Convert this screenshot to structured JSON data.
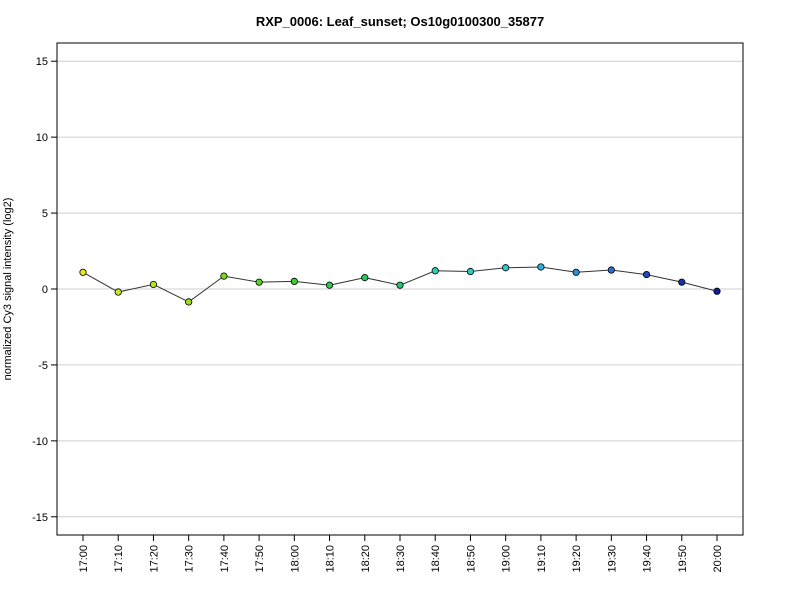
{
  "chart_data": {
    "type": "line",
    "title": "RXP_0006: Leaf_sunset; Os10g0100300_35877",
    "xlabel": "",
    "ylabel": "normalized Cy3 signal intensity (log2)",
    "ylim": [
      -16.2,
      16.2
    ],
    "yticks": [
      15,
      10,
      5,
      0,
      -5,
      -10,
      -15
    ],
    "ytick_labels": [
      "15",
      "10",
      "5",
      "0",
      "-5",
      "-10",
      "-15"
    ],
    "grid": true,
    "categories": [
      "17:00",
      "17:10",
      "17:20",
      "17:30",
      "17:40",
      "17:50",
      "18:00",
      "18:10",
      "18:20",
      "18:30",
      "18:40",
      "18:50",
      "19:00",
      "19:10",
      "19:20",
      "19:30",
      "19:40",
      "19:50",
      "20:00"
    ],
    "values": [
      1.1,
      -0.2,
      0.3,
      -0.85,
      0.85,
      0.45,
      0.5,
      0.25,
      0.75,
      0.25,
      1.2,
      1.15,
      1.4,
      1.45,
      1.1,
      1.25,
      0.95,
      0.45,
      -0.15
    ],
    "point_colors": [
      "#e6e62a",
      "#c8e620",
      "#b4e620",
      "#9adc20",
      "#7ad820",
      "#5ad228",
      "#3ecf38",
      "#2ecb4a",
      "#28c860",
      "#22c57a",
      "#28cfb0",
      "#28cfc0",
      "#30c8d0",
      "#2ab0e0",
      "#2a90d8",
      "#2a6cd0",
      "#1e48c0",
      "#1830b0",
      "#102090"
    ],
    "line_color": "#333333"
  }
}
